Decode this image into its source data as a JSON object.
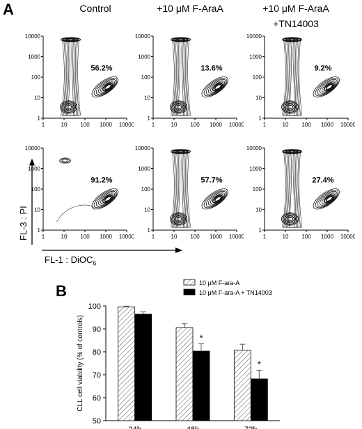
{
  "panel_a": {
    "letter": "A",
    "column_titles": [
      "Control",
      "+10 μM F-AraA",
      "+10 μM F-AraA",
      "+TN14003"
    ],
    "y_axis_label": "FL-3 : PI",
    "x_axis_label_main": "FL-1 : DiOC",
    "x_axis_label_sub": "6",
    "y_ticks": [
      "10000",
      "1000",
      "100",
      "10",
      "1"
    ],
    "x_ticks": [
      "1",
      "10",
      "100",
      "1000",
      "10000"
    ],
    "percentages": [
      [
        "56.2%",
        "13.6%",
        "9.2%"
      ],
      [
        "91.2%",
        "57.7%",
        "27.4%"
      ]
    ]
  },
  "panel_b": {
    "letter": "B",
    "legend": [
      "10 μM F-ara-A",
      "10 μM F-ara-A + TN14003"
    ],
    "asterisk": "*",
    "chart_data": {
      "type": "bar",
      "categories": [
        "24h",
        "48h",
        "72h"
      ],
      "series": [
        {
          "name": "10 μM F-ara-A",
          "values": [
            99.6,
            90.5,
            80.7
          ],
          "errors": [
            0.3,
            1.7,
            2.6
          ],
          "pattern": "hatched"
        },
        {
          "name": "10 μM F-ara-A + TN14003",
          "values": [
            96.4,
            80.3,
            68.2
          ],
          "errors": [
            1.0,
            3.2,
            3.8
          ],
          "pattern": "solid"
        }
      ],
      "significant": [
        false,
        true,
        true
      ],
      "ylabel": "CLL cell viability (% of controls)",
      "yticks": [
        "100",
        "90",
        "80",
        "70",
        "60",
        "50"
      ],
      "ylim": [
        50,
        100
      ]
    }
  }
}
